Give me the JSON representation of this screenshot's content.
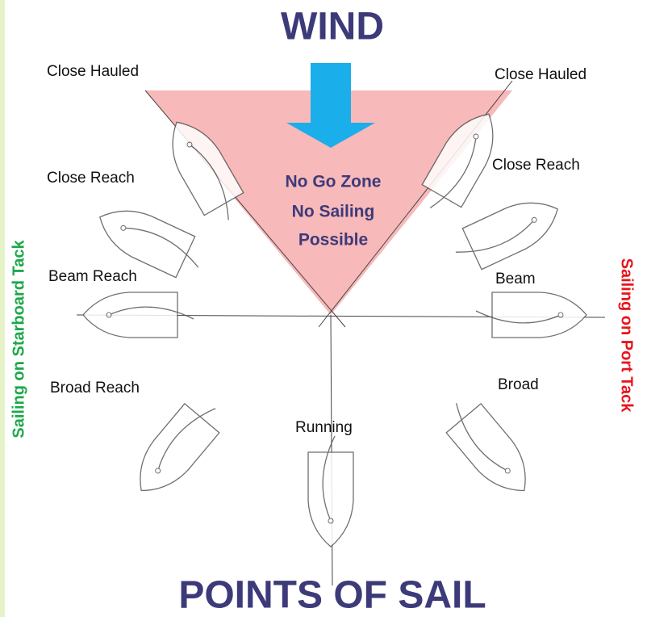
{
  "title": "WIND",
  "no_go_zone": [
    "No Go Zone",
    "No Sailing",
    "Possible"
  ],
  "labels": {
    "close_hauled_left": "Close Hauled",
    "close_hauled_right": "Close Hauled",
    "close_reach_left": "Close Reach",
    "close_reach_right": "Close Reach",
    "beam_left": "Beam Reach",
    "beam_right": "Beam",
    "broad_left": "Broad Reach",
    "broad_right": "Broad",
    "running": "Running"
  },
  "side_labels": {
    "starboard": "Sailing on Starboard Tack",
    "port": "Sailing on Port Tack"
  },
  "footer": "POINTS OF SAIL"
}
